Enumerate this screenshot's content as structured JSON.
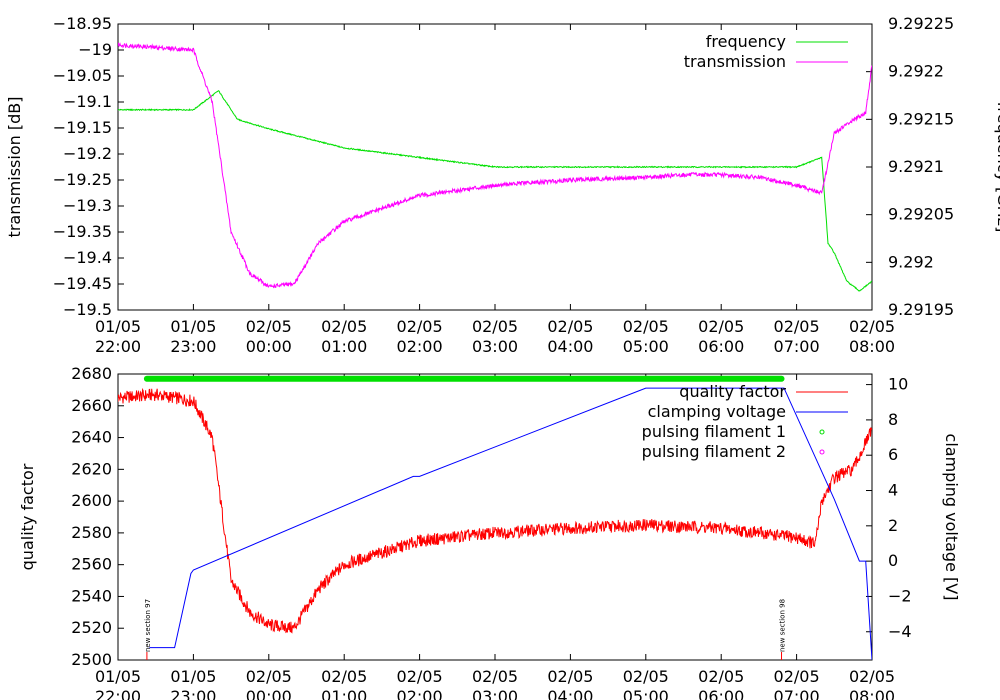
{
  "chart_data": [
    {
      "type": "line",
      "ylabel": "transmission [dB]",
      "y2label": "frequency [GHz]",
      "xlim": [
        "01/05 22:00",
        "02/05 08:00"
      ],
      "ylim": [
        -19.5,
        -18.95
      ],
      "y2lim": [
        9.29195,
        9.29225
      ],
      "x_tick_labels": [
        [
          "01/05",
          "22:00"
        ],
        [
          "01/05",
          "23:00"
        ],
        [
          "02/05",
          "00:00"
        ],
        [
          "02/05",
          "01:00"
        ],
        [
          "02/05",
          "02:00"
        ],
        [
          "02/05",
          "03:00"
        ],
        [
          "02/05",
          "04:00"
        ],
        [
          "02/05",
          "05:00"
        ],
        [
          "02/05",
          "06:00"
        ],
        [
          "02/05",
          "07:00"
        ],
        [
          "02/05",
          "08:00"
        ]
      ],
      "y_tick_labels": [
        "−18.95",
        "−19",
        "−19.05",
        "−19.1",
        "−19.15",
        "−19.2",
        "−19.25",
        "−19.3",
        "−19.35",
        "−19.4",
        "−19.45",
        "−19.5"
      ],
      "y2_tick_labels": [
        "9.29225",
        "9.2922",
        "9.29215",
        "9.2921",
        "9.29205",
        "9.292",
        "9.29195"
      ],
      "legend_position": "top-right",
      "series": [
        {
          "name": "frequency",
          "axis": "y2",
          "color": "#00e000",
          "x": [
            "01/05 22:00",
            "01/05 23:00",
            "01/05 23:20",
            "01/05 23:35",
            "02/05 00:00",
            "02/05 01:00",
            "02/05 02:00",
            "02/05 03:00",
            "02/05 04:00",
            "02/05 05:00",
            "02/05 06:00",
            "02/05 07:00",
            "02/05 07:20",
            "02/05 07:25",
            "02/05 07:30",
            "02/05 07:40",
            "02/05 07:50",
            "02/05 08:00"
          ],
          "y": [
            9.29216,
            9.29216,
            9.29218,
            9.29215,
            9.29214,
            9.29212,
            9.29211,
            9.2921,
            9.2921,
            9.2921,
            9.2921,
            9.2921,
            9.29211,
            9.29202,
            9.29201,
            9.29198,
            9.29197,
            9.29198
          ]
        },
        {
          "name": "transmission",
          "axis": "y",
          "color": "#ff00ff",
          "x": [
            "01/05 22:00",
            "01/05 22:30",
            "01/05 23:00",
            "01/05 23:15",
            "01/05 23:30",
            "01/05 23:45",
            "02/05 00:00",
            "02/05 00:20",
            "02/05 00:40",
            "02/05 01:00",
            "02/05 02:00",
            "02/05 03:00",
            "02/05 04:00",
            "02/05 05:00",
            "02/05 05:30",
            "02/05 06:00",
            "02/05 06:30",
            "02/05 07:00",
            "02/05 07:20",
            "02/05 07:30",
            "02/05 07:45",
            "02/05 07:55",
            "02/05 08:00"
          ],
          "y": [
            -18.99,
            -18.995,
            -19.0,
            -19.1,
            -19.35,
            -19.43,
            -19.455,
            -19.45,
            -19.37,
            -19.33,
            -19.28,
            -19.26,
            -19.25,
            -19.245,
            -19.24,
            -19.24,
            -19.245,
            -19.26,
            -19.275,
            -19.16,
            -19.135,
            -19.12,
            -19.03
          ]
        }
      ]
    },
    {
      "type": "line",
      "ylabel": "quality factor",
      "y2label": "clamping voltage [V]",
      "xlim": [
        "01/05 22:00",
        "02/05 08:00"
      ],
      "ylim": [
        2500,
        2680
      ],
      "y2lim": [
        -5.6,
        10.6
      ],
      "x_tick_labels": [
        [
          "01/05",
          "22:00"
        ],
        [
          "01/05",
          "23:00"
        ],
        [
          "02/05",
          "00:00"
        ],
        [
          "02/05",
          "01:00"
        ],
        [
          "02/05",
          "02:00"
        ],
        [
          "02/05",
          "03:00"
        ],
        [
          "02/05",
          "04:00"
        ],
        [
          "02/05",
          "05:00"
        ],
        [
          "02/05",
          "06:00"
        ],
        [
          "02/05",
          "07:00"
        ],
        [
          "02/05",
          "08:00"
        ]
      ],
      "y_tick_labels": [
        "2680",
        "2660",
        "2640",
        "2620",
        "2600",
        "2580",
        "2560",
        "2540",
        "2520",
        "2500"
      ],
      "y2_tick_labels": [
        "10",
        "8",
        "6",
        "4",
        "2",
        "0",
        "−2",
        "−4"
      ],
      "legend_position": "top-right",
      "series": [
        {
          "name": "quality factor",
          "axis": "y",
          "color": "#ff0000",
          "x": [
            "01/05 22:00",
            "01/05 22:30",
            "01/05 23:00",
            "01/05 23:15",
            "01/05 23:30",
            "01/05 23:45",
            "02/05 00:00",
            "02/05 00:20",
            "02/05 00:40",
            "02/05 01:00",
            "02/05 02:00",
            "02/05 03:00",
            "02/05 04:00",
            "02/05 05:00",
            "02/05 06:00",
            "02/05 06:30",
            "02/05 07:00",
            "02/05 07:15",
            "02/05 07:20",
            "02/05 07:30",
            "02/05 07:45",
            "02/05 08:00"
          ],
          "y": [
            2665,
            2667,
            2663,
            2640,
            2550,
            2530,
            2522,
            2520,
            2545,
            2560,
            2575,
            2580,
            2583,
            2585,
            2583,
            2580,
            2577,
            2573,
            2600,
            2615,
            2620,
            2645
          ]
        },
        {
          "name": "clamping voltage",
          "axis": "y2",
          "color": "#0000ff",
          "x": [
            "01/05 22:25",
            "01/05 22:45",
            "01/05 22:58",
            "01/05 23:00",
            "02/05 01:55",
            "02/05 02:00",
            "02/05 05:00",
            "02/05 06:00",
            "02/05 06:50",
            "02/05 07:30",
            "02/05 07:50",
            "02/05 07:55",
            "02/05 08:00"
          ],
          "y": [
            -4.9,
            -4.9,
            -0.7,
            -0.5,
            4.8,
            4.8,
            9.8,
            9.8,
            9.8,
            3.5,
            0.0,
            0.0,
            -5.6
          ]
        },
        {
          "name": "pulsing filament 1",
          "axis": "y",
          "color": "#00e000",
          "x": [
            "01/05 22:23",
            "02/05 06:48"
          ],
          "y": [
            2677,
            2677
          ]
        },
        {
          "name": "pulsing filament 2",
          "axis": "y",
          "color": "#ff00ff",
          "x": [],
          "y": []
        }
      ],
      "annotations": [
        {
          "text": "new section 97",
          "x": "01/05 22:23"
        },
        {
          "text": "new section 98",
          "x": "02/05 06:48"
        }
      ]
    }
  ]
}
